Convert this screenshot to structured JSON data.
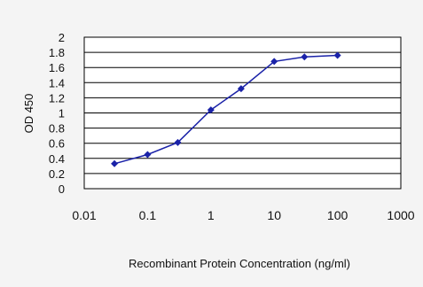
{
  "chart_data": {
    "type": "line",
    "title": "",
    "xlabel": "Recombinant Protein Concentration (ng/ml)",
    "ylabel": "OD 450",
    "xscale": "log",
    "xlim": [
      0.01,
      1000
    ],
    "ylim": [
      0,
      2
    ],
    "grid": true,
    "x_ticks": [
      "0.01",
      "0.1",
      "1",
      "10",
      "100",
      "1000"
    ],
    "y_ticks": [
      "0",
      "0.2",
      "0.4",
      "0.6",
      "0.8",
      "1",
      "1.2",
      "1.4",
      "1.6",
      "1.8",
      "2"
    ],
    "series": [
      {
        "color": "#1a22a8",
        "x": [
          0.03,
          0.1,
          0.3,
          1,
          3,
          10,
          30,
          100
        ],
        "y": [
          0.33,
          0.45,
          0.61,
          1.04,
          1.32,
          1.68,
          1.74,
          1.76
        ]
      }
    ]
  }
}
